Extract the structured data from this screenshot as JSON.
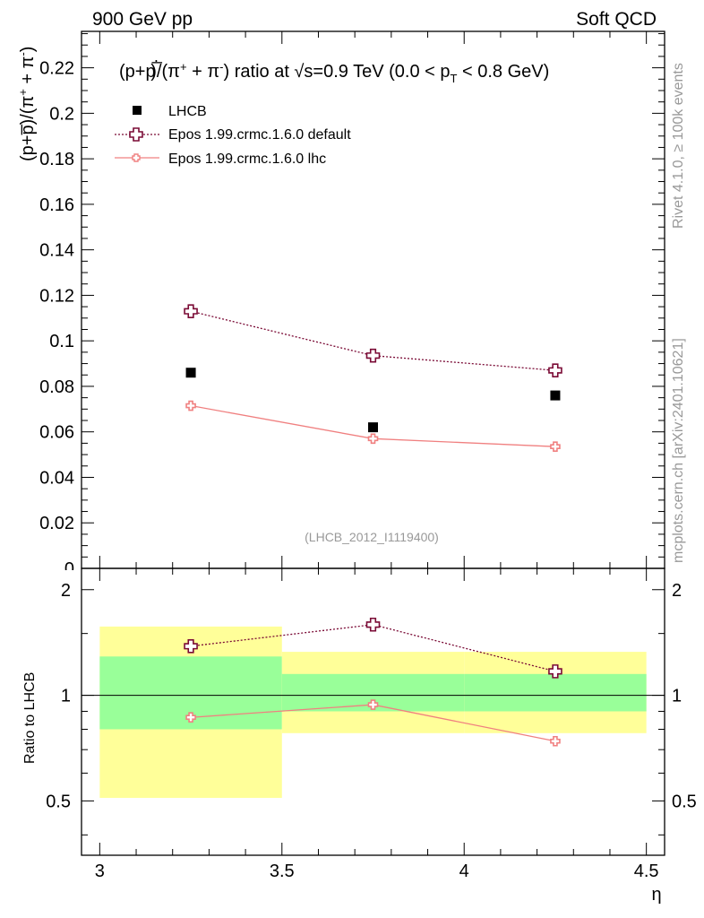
{
  "header": {
    "left": "900 GeV pp",
    "right": "Soft QCD"
  },
  "side": {
    "rivet": "Rivet 4.1.0, ≥ 100k events",
    "mcplots": "mcplots.cern.ch [arXiv:2401.10621]"
  },
  "colors": {
    "data": "#000000",
    "default": "#7a0a35",
    "lhc": "#f08080",
    "band_inner": "#99ff99",
    "band_outer": "#ffff99",
    "watermark": "#999999"
  },
  "chart_data": {
    "type": "scatter",
    "title": "(p+p̅)/(π⁺ + π⁻) ratio at √s=0.9 TeV (0.0 < p_T < 0.8 GeV)",
    "analysis_id": "(LHCB_2012_I1119400)",
    "xlabel": "η",
    "ylabel": "(p+p̅)/(π⁺ + π⁻)",
    "ratio_ylabel": "Ratio to LHCB",
    "xlim": [
      2.95,
      4.55
    ],
    "ylim": [
      0,
      0.236
    ],
    "ratio_ylim": [
      0.35,
      2.3
    ],
    "x_ticks": [
      "3",
      "3.5",
      "4",
      "4.5"
    ],
    "y_ticks": [
      "0.02",
      "0.04",
      "0.06",
      "0.08",
      "0.1",
      "0.12",
      "0.14",
      "0.16",
      "0.18",
      "0.2",
      "0.22"
    ],
    "ratio_ticks": [
      "0.5",
      "1",
      "2"
    ],
    "zero_tick": "0",
    "legend": [
      "LHCB",
      "Epos 1.99.crmc.1.6.0 default",
      "Epos 1.99.crmc.1.6.0 lhc"
    ],
    "legend_position": "top-left",
    "bins": [
      {
        "lo": 3.0,
        "hi": 3.5,
        "inner": [
          0.8,
          1.29
        ],
        "outer": [
          0.51,
          1.57
        ]
      },
      {
        "lo": 3.5,
        "hi": 4.0,
        "inner": [
          0.9,
          1.15
        ],
        "outer": [
          0.78,
          1.33
        ]
      },
      {
        "lo": 4.0,
        "hi": 4.5,
        "inner": [
          0.9,
          1.15
        ],
        "outer": [
          0.78,
          1.33
        ]
      }
    ],
    "series": [
      {
        "name": "LHCB",
        "x": [
          3.25,
          3.75,
          4.25
        ],
        "values": [
          0.086,
          0.062,
          0.076
        ],
        "ratio": [
          1,
          1,
          1
        ]
      },
      {
        "name": "Epos 1.99.crmc.1.6.0 default",
        "x": [
          3.25,
          3.75,
          4.25
        ],
        "values": [
          0.113,
          0.0935,
          0.087
        ],
        "ratio": [
          1.38,
          1.59,
          1.17
        ]
      },
      {
        "name": "Epos 1.99.crmc.1.6.0 lhc",
        "x": [
          3.25,
          3.75,
          4.25
        ],
        "values": [
          0.0715,
          0.057,
          0.0535
        ],
        "ratio": [
          0.865,
          0.94,
          0.74
        ]
      }
    ]
  }
}
